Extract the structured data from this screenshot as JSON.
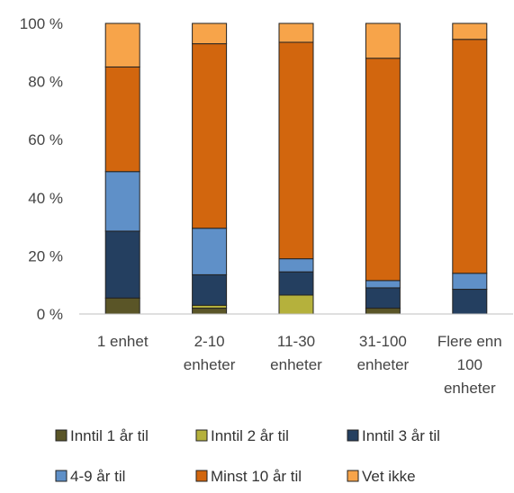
{
  "chart_data": {
    "type": "bar",
    "stacked": true,
    "percent": true,
    "title": "",
    "xlabel": "",
    "ylabel": "",
    "ylim": [
      0,
      100
    ],
    "yticks": [
      "0 %",
      "20 %",
      "40 %",
      "60 %",
      "80 %",
      "100 %"
    ],
    "grid": false,
    "legend_position": "bottom",
    "categories": [
      [
        "1 enhet"
      ],
      [
        "2-10",
        "enheter"
      ],
      [
        "11-30",
        "enheter"
      ],
      [
        "31-100",
        "enheter"
      ],
      [
        "Flere enn",
        "100",
        "enheter"
      ]
    ],
    "series": [
      {
        "name": "Inntil 1 år til",
        "color": "#5a5527",
        "values": [
          5.5,
          2,
          0,
          2,
          0
        ]
      },
      {
        "name": "Inntil 2 år til",
        "color": "#b5b13c",
        "values": [
          0,
          1,
          6.5,
          0,
          0
        ]
      },
      {
        "name": "Inntil 3 år til",
        "color": "#243f60",
        "values": [
          23,
          10.5,
          8,
          7,
          8.5
        ]
      },
      {
        "name": "4-9 år til",
        "color": "#5f90c8",
        "values": [
          20.5,
          16,
          4.5,
          2.5,
          5.5
        ]
      },
      {
        "name": "Minst 10 år til",
        "color": "#d2660e",
        "values": [
          36,
          63.5,
          74.5,
          76.5,
          80.5
        ]
      },
      {
        "name": "Vet ikke",
        "color": "#f7a44a",
        "values": [
          15,
          7,
          6.5,
          12,
          5.5
        ]
      }
    ]
  }
}
